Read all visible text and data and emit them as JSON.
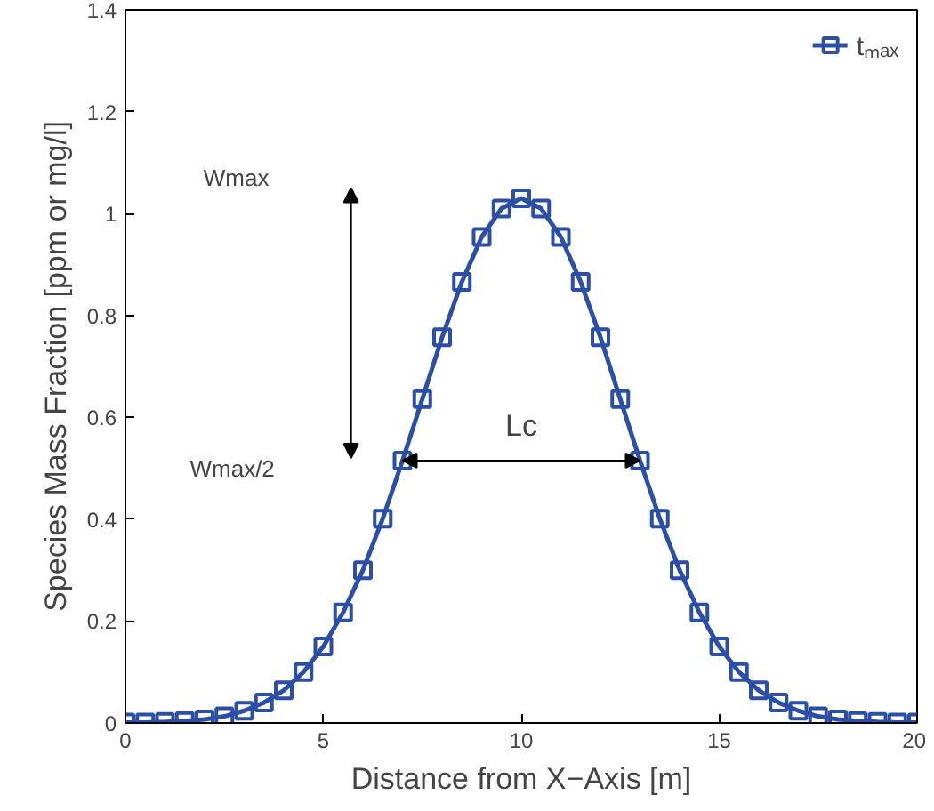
{
  "chart_data": {
    "type": "line",
    "xlabel": "Distance from X−Axis [m]",
    "ylabel": "Species Mass Fraction [ppm or mg/l]",
    "x": [
      0,
      0.5,
      1,
      1.5,
      2,
      2.5,
      3,
      3.5,
      4,
      4.5,
      5,
      5.5,
      6,
      6.5,
      7,
      7.5,
      8,
      8.5,
      9,
      9.5,
      10,
      10.5,
      11,
      11.5,
      12,
      12.5,
      13,
      13.5,
      14,
      14.5,
      15,
      15.5,
      16,
      16.5,
      17,
      17.5,
      18,
      18.5,
      19,
      19.5,
      20
    ],
    "series": [
      {
        "name": "tₘₐₓ",
        "color": "#2b4ea6",
        "values": [
          0.001,
          0.001,
          0.002,
          0.004,
          0.007,
          0.013,
          0.024,
          0.04,
          0.064,
          0.1,
          0.15,
          0.217,
          0.3,
          0.401,
          0.515,
          0.636,
          0.757,
          0.866,
          0.954,
          1.01,
          1.03,
          1.01,
          0.954,
          0.866,
          0.757,
          0.636,
          0.515,
          0.401,
          0.3,
          0.217,
          0.15,
          0.1,
          0.064,
          0.04,
          0.024,
          0.013,
          0.007,
          0.004,
          0.002,
          0.001,
          0.001
        ]
      }
    ],
    "xlim": [
      0,
      20
    ],
    "ylim": [
      0,
      1.4
    ],
    "xticks": [
      0,
      5,
      10,
      15,
      20
    ],
    "yticks": [
      0,
      0.2,
      0.4,
      0.6,
      0.8,
      1,
      1.2,
      1.4
    ],
    "marker": "square",
    "line_style": "solid",
    "grid": false,
    "legend": "top right",
    "annotations": [
      "Wmax",
      "Wmax/2",
      "Lc"
    ]
  }
}
